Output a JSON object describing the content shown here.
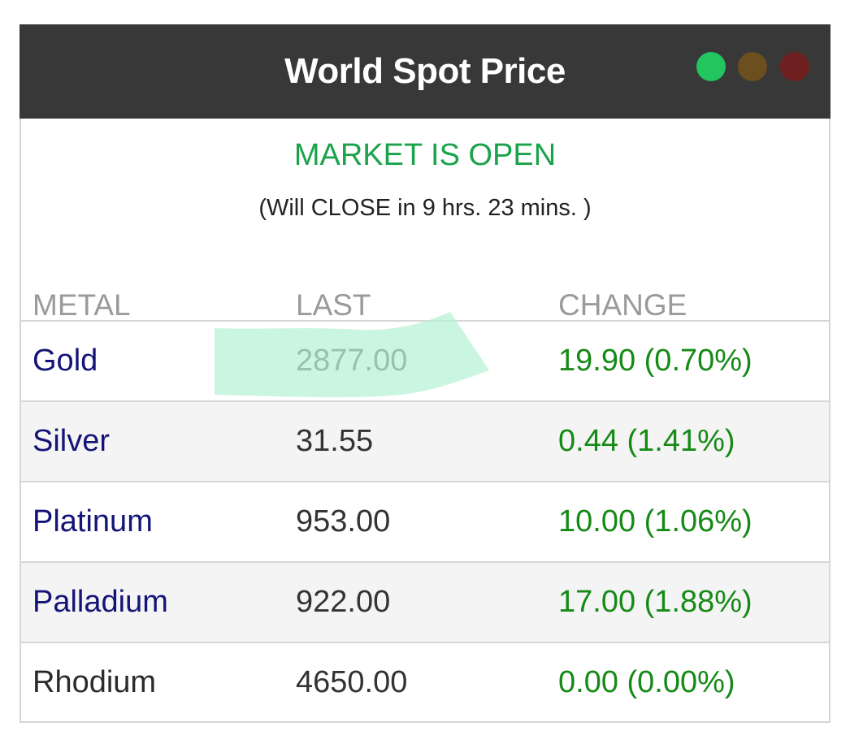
{
  "header": {
    "title": "World Spot Price",
    "indicators": [
      {
        "name": "green",
        "color": "#22c55e"
      },
      {
        "name": "amber",
        "color": "#6b4f1f"
      },
      {
        "name": "red",
        "color": "#6e1f1f"
      }
    ]
  },
  "market": {
    "status": "MARKET IS OPEN",
    "countdown": "(Will CLOSE in 9 hrs. 23 mins. )"
  },
  "table": {
    "columns": [
      "METAL",
      "LAST",
      "CHANGE"
    ],
    "rows": [
      {
        "metal": "Gold",
        "last": "2877.00",
        "change": "19.90 (0.70%)"
      },
      {
        "metal": "Silver",
        "last": "31.55",
        "change": "0.44 (1.41%)"
      },
      {
        "metal": "Platinum",
        "last": "953.00",
        "change": "10.00 (1.06%)"
      },
      {
        "metal": "Palladium",
        "last": "922.00",
        "change": "17.00 (1.88%)"
      },
      {
        "metal": "Rhodium",
        "last": "4650.00",
        "change": "0.00 (0.00%)"
      }
    ]
  },
  "colors": {
    "header_bg": "#383838",
    "status_green": "#1aa34a",
    "metal_link": "#141478",
    "change_positive": "#168a16",
    "highlight": "#b8f2d6"
  }
}
